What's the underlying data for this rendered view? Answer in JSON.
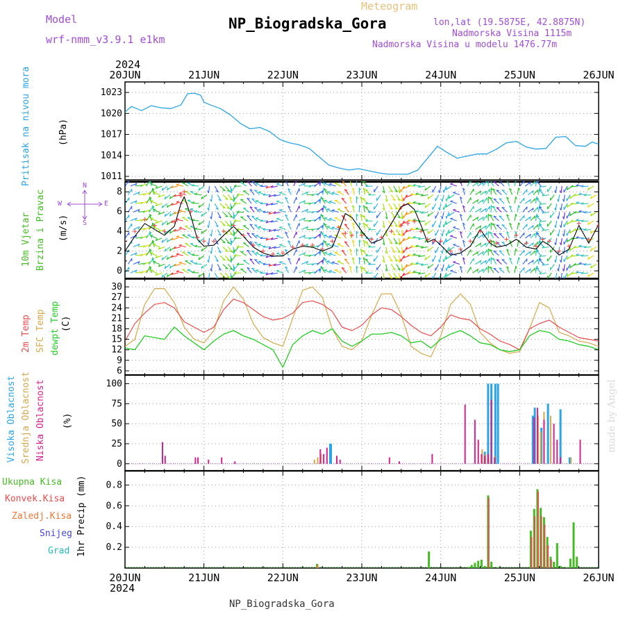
{
  "header": {
    "model_label": "Model",
    "model_name": "wrf-nmm_v3.9.1 e1km",
    "meteogram_label": "Meteogram",
    "station_title": "NP_Biogradska_Gora",
    "lonlat": "lon,lat (19.5875E, 42.8875N)",
    "elevation": "Nadmorska Visina 1115m",
    "model_elevation": "Nadmorska Visina u modelu 1476.77m",
    "year_top": "2024",
    "year_bottom": "2024",
    "footer_station": "NP_Biogradska_Gora",
    "credit": "made by Angel"
  },
  "colors": {
    "model": "#a04cd6",
    "meteogram": "#e8c07a",
    "pressure": "#2aa4e6",
    "temp2m": "#e84c4c",
    "sfc": "#d4a84a",
    "dewpt": "#22cc22",
    "high_cloud": "#2aa4e6",
    "mid_cloud": "#d4a84a",
    "low_cloud": "#d4228c",
    "total_precip": "#44bb22",
    "conv_precip": "#e84c4c",
    "frz_precip": "#ee7733",
    "snow": "#4444dd",
    "hail": "#22bbbb",
    "wind_speed": "#000000",
    "wind_gust": "#e84c4c"
  },
  "x_axis": {
    "labels": [
      "20JUN",
      "21JUN",
      "22JUN",
      "23JUN",
      "24JUN",
      "25JUN",
      "26JUN"
    ],
    "range_hours": [
      0,
      144
    ]
  },
  "panels": {
    "pressure": {
      "label": "Pritisak na nivou mora",
      "unit": "(hPa)"
    },
    "wind": {
      "label1": "10m Vjetar",
      "label2": "Brzina i Pravac",
      "unit": "(m/s)",
      "compass_n": "N",
      "compass_w": "W",
      "compass_e": "E",
      "compass_s": "S"
    },
    "temp": {
      "label_2m": "2m Temp",
      "label_sfc": "SFC Temp",
      "label_dew": "dewpt Temp",
      "unit": "(C)"
    },
    "cloud": {
      "label_high": "Visoka Oblacnost",
      "label_mid": "Srednja Oblacnost",
      "label_low": "Niska Oblacnost",
      "unit": "(%)"
    },
    "precip": {
      "legend": [
        "Ukupna Kisa",
        "Konvek.Kisa",
        "Zaledj.Kisa",
        "Snijeg",
        "Grad"
      ],
      "unit": "1hr Precip (mm)"
    }
  },
  "chart_data": [
    {
      "type": "line",
      "name": "pressure",
      "ylim": [
        1010.5,
        1024.5
      ],
      "yticks": [
        1011,
        1014,
        1017,
        1020,
        1023
      ],
      "x": [
        0,
        2,
        5,
        8,
        11,
        14,
        17,
        19,
        21,
        23,
        24,
        26,
        29,
        32,
        35,
        38,
        41,
        44,
        47,
        50,
        53,
        56,
        59,
        62,
        65,
        68,
        71,
        74,
        77,
        80,
        83,
        86,
        89,
        92,
        95,
        98,
        101,
        104,
        107,
        110,
        113,
        116,
        119,
        122,
        125,
        128,
        131,
        134,
        137,
        140,
        142,
        144
      ],
      "series": [
        {
          "name": "Pritisak na nivou mora",
          "values": [
            1020.2,
            1021.0,
            1020.4,
            1021.1,
            1020.8,
            1020.7,
            1021.2,
            1022.8,
            1022.9,
            1022.6,
            1021.6,
            1021.2,
            1020.7,
            1019.8,
            1018.6,
            1017.8,
            1018.0,
            1017.4,
            1016.3,
            1015.8,
            1015.5,
            1015.0,
            1013.8,
            1012.6,
            1012.2,
            1011.9,
            1012.1,
            1011.8,
            1011.5,
            1011.3,
            1011.3,
            1011.3,
            1011.9,
            1013.6,
            1015.3,
            1014.4,
            1013.6,
            1013.9,
            1014.2,
            1014.2,
            1014.9,
            1015.8,
            1016.0,
            1015.2,
            1014.9,
            1015.0,
            1016.6,
            1016.7,
            1015.4,
            1015.3,
            1015.9,
            1015.6
          ]
        }
      ]
    },
    {
      "type": "line",
      "name": "wind",
      "ylim": [
        -0.7,
        9.0
      ],
      "yticks": [
        0,
        2,
        4,
        6,
        8
      ],
      "x": [
        0,
        3,
        6,
        9,
        12,
        15,
        17,
        18,
        20,
        22,
        24,
        27,
        30,
        33,
        36,
        39,
        42,
        45,
        48,
        51,
        54,
        57,
        60,
        63,
        65,
        67,
        69,
        72,
        75,
        78,
        81,
        84,
        86,
        88,
        90,
        92,
        94,
        96,
        99,
        102,
        105,
        108,
        111,
        113,
        116,
        119,
        122,
        125,
        127,
        129,
        132,
        135,
        138,
        141,
        144
      ],
      "series": [
        {
          "name": "speed",
          "values": [
            2.0,
            3.5,
            4.8,
            4.2,
            3.6,
            4.5,
            6.8,
            7.5,
            5.6,
            3.2,
            2.5,
            2.6,
            3.6,
            4.5,
            3.5,
            2.4,
            1.8,
            1.5,
            1.5,
            2.2,
            2.5,
            2.4,
            2.0,
            2.4,
            4.0,
            5.8,
            5.4,
            4.0,
            2.8,
            3.2,
            4.8,
            6.5,
            6.8,
            6.2,
            4.6,
            2.9,
            3.2,
            2.6,
            1.6,
            1.8,
            2.5,
            4.2,
            2.8,
            2.4,
            2.6,
            3.2,
            2.4,
            2.2,
            3.0,
            2.6,
            1.6,
            2.2,
            4.6,
            2.8,
            4.7
          ]
        },
        {
          "name": "gust",
          "values": [
            3.0,
            4.0,
            5.2,
            4.6,
            4.0,
            5.0,
            7.6,
            8.0,
            6.0,
            3.4,
            3.0,
            3.0,
            4.0,
            4.6,
            3.6,
            2.6,
            2.0,
            1.7,
            1.8,
            2.4,
            2.6,
            2.6,
            2.2,
            3.0,
            4.4,
            3.8,
            3.6,
            3.6,
            3.2,
            3.4,
            4.0,
            4.6,
            4.8,
            5.0,
            4.0,
            3.2,
            3.0,
            3.0,
            2.0,
            2.2,
            3.0,
            4.0,
            3.0,
            2.8,
            3.2,
            3.6,
            2.8,
            2.5,
            3.2,
            3.0,
            2.0,
            2.5,
            4.8,
            3.2,
            4.6
          ]
        }
      ]
    },
    {
      "type": "line",
      "name": "temperature",
      "ylim": [
        5,
        32
      ],
      "yticks": [
        6,
        9,
        12,
        15,
        18,
        21,
        24,
        27,
        30
      ],
      "x": [
        0,
        3,
        6,
        9,
        12,
        15,
        18,
        21,
        24,
        27,
        30,
        33,
        36,
        39,
        42,
        45,
        48,
        51,
        54,
        57,
        60,
        63,
        66,
        69,
        72,
        75,
        78,
        81,
        84,
        87,
        90,
        93,
        96,
        99,
        102,
        105,
        108,
        111,
        114,
        117,
        120,
        123,
        126,
        129,
        132,
        135,
        138,
        141,
        144
      ],
      "series": [
        {
          "name": "2m Temp",
          "values": [
            14.5,
            19.5,
            22.5,
            25.0,
            25.5,
            24.0,
            20.0,
            18.5,
            17.0,
            18.5,
            23.5,
            26.5,
            25.5,
            23.5,
            21.5,
            20.5,
            21.0,
            22.5,
            25.5,
            26.0,
            25.0,
            23.0,
            18.5,
            17.5,
            19.0,
            22.0,
            24.0,
            23.5,
            21.5,
            19.0,
            17.0,
            16.0,
            18.5,
            22.0,
            21.0,
            20.5,
            18.0,
            16.5,
            14.5,
            13.5,
            12.0,
            18.0,
            19.5,
            20.5,
            18.5,
            17.0,
            15.5,
            15.0,
            14.5
          ]
        },
        {
          "name": "SFC Temp",
          "values": [
            13.0,
            15.0,
            25.0,
            29.5,
            29.5,
            25.5,
            18.5,
            15.0,
            14.0,
            17.5,
            26.0,
            30.0,
            26.5,
            19.5,
            15.5,
            14.0,
            13.0,
            21.0,
            29.0,
            30.0,
            27.0,
            18.0,
            13.0,
            12.0,
            14.5,
            22.0,
            28.0,
            28.0,
            22.0,
            13.0,
            11.0,
            10.0,
            16.0,
            25.0,
            28.0,
            25.0,
            17.0,
            14.0,
            12.0,
            11.0,
            11.5,
            18.0,
            25.5,
            24.0,
            17.0,
            16.0,
            14.5,
            14.0,
            13.0
          ]
        },
        {
          "name": "dewpt Temp",
          "values": [
            12.5,
            12.0,
            16.0,
            15.5,
            15.0,
            18.5,
            16.0,
            14.0,
            12.0,
            14.5,
            16.5,
            17.5,
            16.0,
            15.0,
            13.5,
            12.0,
            7.0,
            13.5,
            16.0,
            17.5,
            16.5,
            18.0,
            14.5,
            13.0,
            14.5,
            16.5,
            16.5,
            17.0,
            16.0,
            14.0,
            14.5,
            12.5,
            15.0,
            16.5,
            17.5,
            16.0,
            14.0,
            13.5,
            12.0,
            11.5,
            12.0,
            16.0,
            17.5,
            17.0,
            15.0,
            14.5,
            13.5,
            13.0,
            12.0
          ]
        }
      ]
    },
    {
      "type": "bar",
      "name": "cloud_cover",
      "ylim": [
        -8,
        110
      ],
      "yticks": [
        0,
        25,
        50,
        75,
        100
      ],
      "series": [
        {
          "name": "Visoka Oblacnost",
          "bars": [
            [
              62.4,
              25
            ],
            [
              62.6,
              25
            ],
            [
              109.4,
              15
            ],
            [
              110.4,
              100
            ],
            [
              111.4,
              100
            ],
            [
              112.6,
              100
            ],
            [
              113.4,
              100
            ],
            [
              124.0,
              60
            ],
            [
              124.6,
              70
            ],
            [
              126.6,
              45
            ],
            [
              128.6,
              75
            ],
            [
              132.4,
              68
            ],
            [
              135.2,
              8
            ]
          ]
        },
        {
          "name": "Srednja Oblacnost",
          "bars": [
            [
              57.6,
              5
            ],
            [
              58.6,
              8
            ],
            [
              59.6,
              12
            ],
            [
              108.6,
              18
            ],
            [
              109.6,
              12
            ],
            [
              110.6,
              8
            ],
            [
              112.4,
              10
            ],
            [
              125.6,
              60
            ],
            [
              126.4,
              40
            ],
            [
              127.4,
              65
            ],
            [
              129.4,
              60
            ],
            [
              135.6,
              8
            ]
          ]
        },
        {
          "name": "Niska Oblacnost",
          "bars": [
            [
              11.4,
              27
            ],
            [
              12.2,
              10
            ],
            [
              21.4,
              8
            ],
            [
              22.2,
              8
            ],
            [
              25.4,
              5
            ],
            [
              29.4,
              8
            ],
            [
              33.4,
              3
            ],
            [
              59.4,
              18
            ],
            [
              60.4,
              12
            ],
            [
              61.4,
              20
            ],
            [
              64.4,
              10
            ],
            [
              65.4,
              5
            ],
            [
              80.4,
              8
            ],
            [
              83.4,
              3
            ],
            [
              93.4,
              12
            ],
            [
              103.4,
              74
            ],
            [
              106.4,
              55
            ],
            [
              107.4,
              30
            ],
            [
              108.4,
              12
            ],
            [
              109.4,
              10
            ],
            [
              110.4,
              12
            ],
            [
              111.4,
              80
            ],
            [
              112.4,
              8
            ],
            [
              124.4,
              58
            ],
            [
              125.4,
              70
            ],
            [
              127.4,
              55
            ],
            [
              130.4,
              50
            ],
            [
              131.4,
              30
            ],
            [
              132.4,
              8
            ],
            [
              138.4,
              30
            ]
          ]
        }
      ]
    },
    {
      "type": "bar",
      "name": "precipitation",
      "ylim": [
        0,
        0.93
      ],
      "yticks": [
        0.2,
        0.4,
        0.6,
        0.8
      ],
      "series": [
        {
          "name": "Ukupna Kisa",
          "bars": [
            [
              58.4,
              0.04
            ],
            [
              92.4,
              0.16
            ],
            [
              104.4,
              0.01
            ],
            [
              105.4,
              0.03
            ],
            [
              106.4,
              0.05
            ],
            [
              107.4,
              0.07
            ],
            [
              108.4,
              0.08
            ],
            [
              109.4,
              0.02
            ],
            [
              110.4,
              0.7
            ],
            [
              111.4,
              0.06
            ],
            [
              113.4,
              0.01
            ],
            [
              123.4,
              0.36
            ],
            [
              124.4,
              0.57
            ],
            [
              125.4,
              0.76
            ],
            [
              126.4,
              0.58
            ],
            [
              127.4,
              0.49
            ],
            [
              128.4,
              0.3
            ],
            [
              129.4,
              0.11
            ],
            [
              130.4,
              0.06
            ],
            [
              131.4,
              0.24
            ],
            [
              132.4,
              0.02
            ],
            [
              134.4,
              0.01
            ],
            [
              135.4,
              0.09
            ],
            [
              136.4,
              0.44
            ],
            [
              137.4,
              0.11
            ]
          ]
        },
        {
          "name": "Konvek.Kisa",
          "bars": [
            [
              110.6,
              0.68
            ],
            [
              123.6,
              0.3
            ],
            [
              124.6,
              0.5
            ],
            [
              125.6,
              0.74
            ],
            [
              126.6,
              0.5
            ],
            [
              127.6,
              0.42
            ],
            [
              128.6,
              0.22
            ],
            [
              129.6,
              0.08
            ]
          ]
        },
        {
          "name": "Zaledj.Kisa",
          "bars": [
            [
              58.6,
              0.03
            ]
          ]
        }
      ]
    }
  ]
}
